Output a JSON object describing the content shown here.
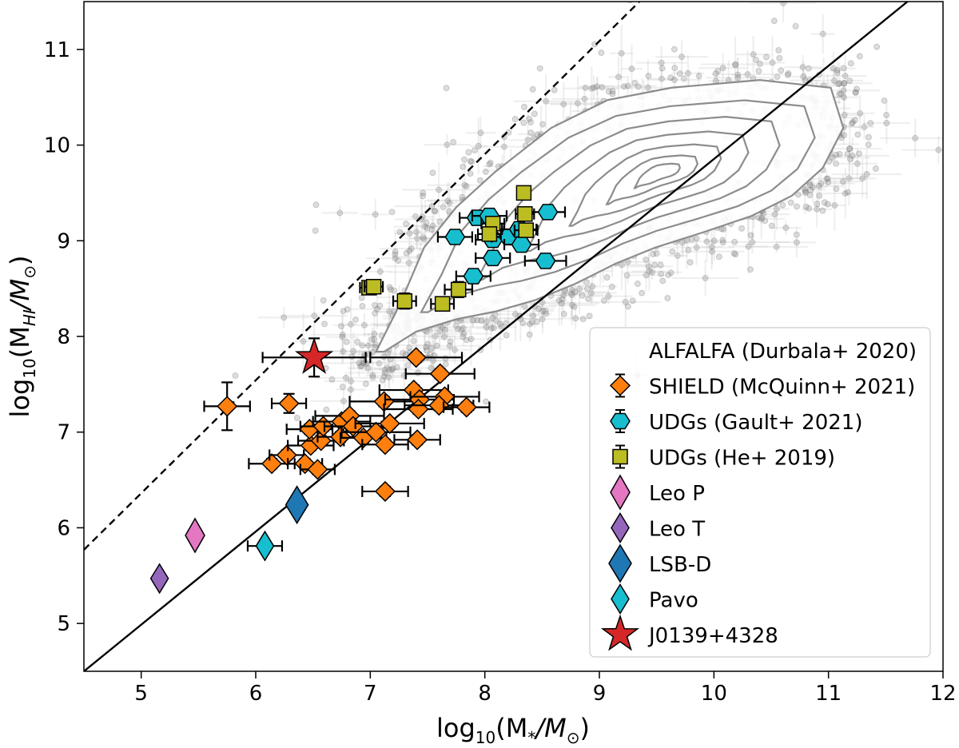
{
  "chart_data": {
    "type": "scatter",
    "xlabel": {
      "pre": "log",
      "sub": "10",
      "open": "(M",
      "msub": "*",
      "mid": "/M",
      "sun": "⊙",
      "close": ")"
    },
    "ylabel": {
      "pre": "log",
      "sub": "10",
      "open": "(M",
      "msub": "HI",
      "mid": "/M",
      "sun": "⊙",
      "close": ")"
    },
    "xlim": [
      4.5,
      12
    ],
    "ylim": [
      4.5,
      11.5
    ],
    "xticks": [
      "5",
      "6",
      "7",
      "8",
      "9",
      "10",
      "11",
      "12"
    ],
    "yticks": [
      "5",
      "6",
      "7",
      "8",
      "9",
      "10",
      "11"
    ],
    "grid": false,
    "legend_position": "lower-right",
    "lines": [
      {
        "style": "solid",
        "points": [
          [
            4.5,
            4.5
          ],
          [
            11.69,
            11.5
          ]
        ]
      },
      {
        "style": "dashed",
        "points": [
          [
            4.5,
            5.77
          ],
          [
            9.35,
            11.5
          ]
        ]
      }
    ],
    "alfalfa": {
      "name": "ALFALFA (Durbala+ 2020)",
      "color": "#555555",
      "outer_contour": [
        [
          7.05,
          7.84
        ],
        [
          7.26,
          8.34
        ],
        [
          7.47,
          8.93
        ],
        [
          7.75,
          9.35
        ],
        [
          8.09,
          9.72
        ],
        [
          8.58,
          10.18
        ],
        [
          9.07,
          10.47
        ],
        [
          9.63,
          10.6
        ],
        [
          10.4,
          10.68
        ],
        [
          11.02,
          10.6
        ],
        [
          11.13,
          10.18
        ],
        [
          10.95,
          9.76
        ],
        [
          10.68,
          9.47
        ],
        [
          10.33,
          9.26
        ],
        [
          9.91,
          9.09
        ],
        [
          9.49,
          8.93
        ],
        [
          9.14,
          8.76
        ],
        [
          8.79,
          8.55
        ],
        [
          8.44,
          8.38
        ],
        [
          8.09,
          8.26
        ],
        [
          7.75,
          8.18
        ],
        [
          7.4,
          8.05
        ],
        [
          7.12,
          7.84
        ]
      ]
    },
    "series": [
      {
        "name": "SHIELD (McQuinn+ 2021)",
        "marker": "diamond",
        "color": "#ff7f0e",
        "points": [
          [
            5.75,
            7.27,
            0.2,
            0.25
          ],
          [
            6.29,
            7.3,
            0.15,
            0.1
          ],
          [
            6.14,
            6.67,
            0.2,
            0.05
          ],
          [
            6.27,
            6.76,
            0.15,
            0.05
          ],
          [
            6.43,
            6.67,
            0.15,
            0.05
          ],
          [
            6.54,
            6.61,
            0.15,
            0.05
          ],
          [
            6.48,
            6.86,
            0.2,
            0.05
          ],
          [
            6.47,
            7.03,
            0.2,
            0.05
          ],
          [
            6.57,
            6.91,
            0.2,
            0.05
          ],
          [
            6.59,
            7.06,
            0.2,
            0.05
          ],
          [
            6.75,
            7.11,
            0.25,
            0.05
          ],
          [
            6.82,
            7.17,
            0.3,
            0.05
          ],
          [
            6.74,
            6.95,
            0.2,
            0.05
          ],
          [
            6.85,
            7.06,
            0.25,
            0.05
          ],
          [
            6.94,
            6.94,
            0.2,
            0.05
          ],
          [
            7.05,
            7.0,
            0.3,
            0.05
          ],
          [
            7.12,
            7.32,
            0.3,
            0.05
          ],
          [
            7.13,
            6.87,
            0.2,
            0.05
          ],
          [
            7.13,
            6.38,
            0.2,
            0.05
          ],
          [
            7.4,
            7.78,
            0.4,
            0.05
          ],
          [
            7.38,
            7.44,
            0.3,
            0.05
          ],
          [
            7.43,
            7.34,
            0.3,
            0.05
          ],
          [
            7.42,
            7.24,
            0.3,
            0.05
          ],
          [
            7.61,
            7.61,
            0.3,
            0.05
          ],
          [
            7.65,
            7.37,
            0.3,
            0.05
          ],
          [
            7.6,
            7.28,
            0.3,
            0.05
          ],
          [
            7.41,
            6.92,
            0.2,
            0.05
          ],
          [
            7.84,
            7.26,
            0.2,
            0.05
          ],
          [
            7.17,
            7.09,
            0.3,
            0.05
          ]
        ]
      },
      {
        "name": "UDGs (Gault+ 2021)",
        "marker": "hexagon",
        "color": "#17becf",
        "points": [
          [
            7.93,
            9.24,
            0.15,
            0.03
          ],
          [
            7.74,
            9.04,
            0.15,
            0.03
          ],
          [
            8.04,
            9.26,
            0.15,
            0.03
          ],
          [
            8.07,
            9.01,
            0.15,
            0.03
          ],
          [
            8.21,
            9.04,
            0.15,
            0.03
          ],
          [
            8.3,
            9.12,
            0.15,
            0.03
          ],
          [
            8.32,
            8.96,
            0.15,
            0.03
          ],
          [
            8.55,
            9.3,
            0.15,
            0.03
          ],
          [
            8.07,
            8.82,
            0.15,
            0.03
          ],
          [
            8.53,
            8.79,
            0.18,
            0.03
          ],
          [
            7.9,
            8.63,
            0.15,
            0.03
          ]
        ]
      },
      {
        "name": "UDGs (He+ 2019)",
        "marker": "square",
        "color": "#bcbd22",
        "points": [
          [
            8.34,
            9.5,
            0.05,
            0.03
          ],
          [
            8.35,
            9.28,
            0.08,
            0.05
          ],
          [
            8.36,
            9.11,
            0.1,
            0.05
          ],
          [
            8.07,
            9.18,
            0.1,
            0.05
          ],
          [
            8.04,
            9.07,
            0.1,
            0.05
          ],
          [
            6.99,
            8.51,
            0.08,
            0.05
          ],
          [
            7.03,
            8.52,
            0.08,
            0.05
          ],
          [
            7.3,
            8.37,
            0.1,
            0.08
          ],
          [
            7.77,
            8.49,
            0.12,
            0.08
          ],
          [
            7.63,
            8.34,
            0.1,
            0.05
          ]
        ]
      },
      {
        "name": "Leo P",
        "marker": "tall-diamond",
        "color": "#e377c2",
        "points": [
          [
            5.47,
            5.92,
            0.05,
            0.05
          ]
        ]
      },
      {
        "name": "Leo T",
        "marker": "tall-diamond-small",
        "color": "#9467bd",
        "points": [
          [
            5.16,
            5.47,
            0,
            0
          ]
        ]
      },
      {
        "name": "LSB-D",
        "marker": "tall-diamond-large",
        "color": "#1f77b4",
        "points": [
          [
            6.36,
            6.24,
            0,
            0
          ]
        ]
      },
      {
        "name": "Pavo",
        "marker": "tall-diamond-small",
        "color": "#17becf",
        "points": [
          [
            6.08,
            5.81,
            0.15,
            0
          ]
        ]
      },
      {
        "name": "J0139+4328",
        "marker": "star",
        "color": "#d62728",
        "points": [
          [
            6.51,
            7.78,
            0.45,
            0.2
          ]
        ]
      }
    ]
  }
}
